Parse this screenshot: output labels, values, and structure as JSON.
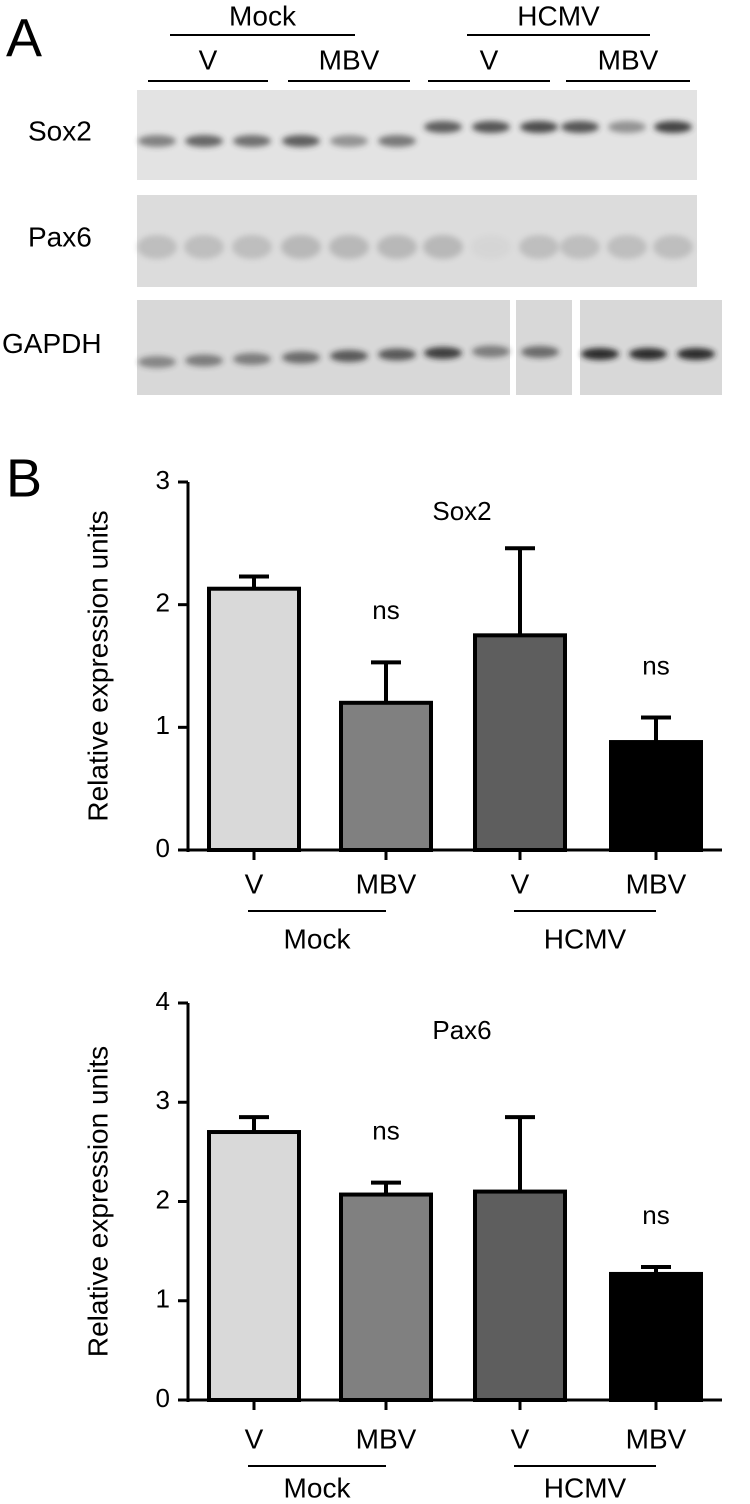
{
  "panel_a": {
    "label": "A",
    "groups": [
      "Mock",
      "HCMV"
    ],
    "subgroups": [
      "V",
      "MBV",
      "V",
      "MBV"
    ],
    "rows": [
      "Sox2",
      "Pax6",
      "GAPDH"
    ]
  },
  "panel_b": {
    "label": "B"
  },
  "chart_data": [
    {
      "type": "bar",
      "title": "Sox2",
      "y_label": "Relative expression units",
      "categories": [
        "V",
        "MBV",
        "V",
        "MBV"
      ],
      "groups": [
        "Mock",
        "HCMV"
      ],
      "values": [
        2.13,
        1.2,
        1.75,
        0.88
      ],
      "errors": [
        0.1,
        0.33,
        0.71,
        0.2
      ],
      "colors": [
        "#d9d9d9",
        "#808080",
        "#5e5e5e",
        "#000000"
      ],
      "value_annotations": [
        null,
        "ns",
        null,
        "ns"
      ],
      "ylim": [
        0,
        3
      ],
      "yticks": [
        0,
        1,
        2,
        3
      ]
    },
    {
      "type": "bar",
      "title": "Pax6",
      "y_label": "Relative expression units",
      "categories": [
        "V",
        "MBV",
        "V",
        "MBV"
      ],
      "groups": [
        "Mock",
        "HCMV"
      ],
      "values": [
        2.7,
        2.07,
        2.1,
        1.27
      ],
      "errors": [
        0.15,
        0.12,
        0.75,
        0.07
      ],
      "colors": [
        "#d9d9d9",
        "#808080",
        "#5e5e5e",
        "#000000"
      ],
      "value_annotations": [
        null,
        "ns",
        null,
        "ns"
      ],
      "ylim": [
        0,
        4
      ],
      "yticks": [
        0,
        1,
        2,
        3,
        4
      ]
    }
  ]
}
